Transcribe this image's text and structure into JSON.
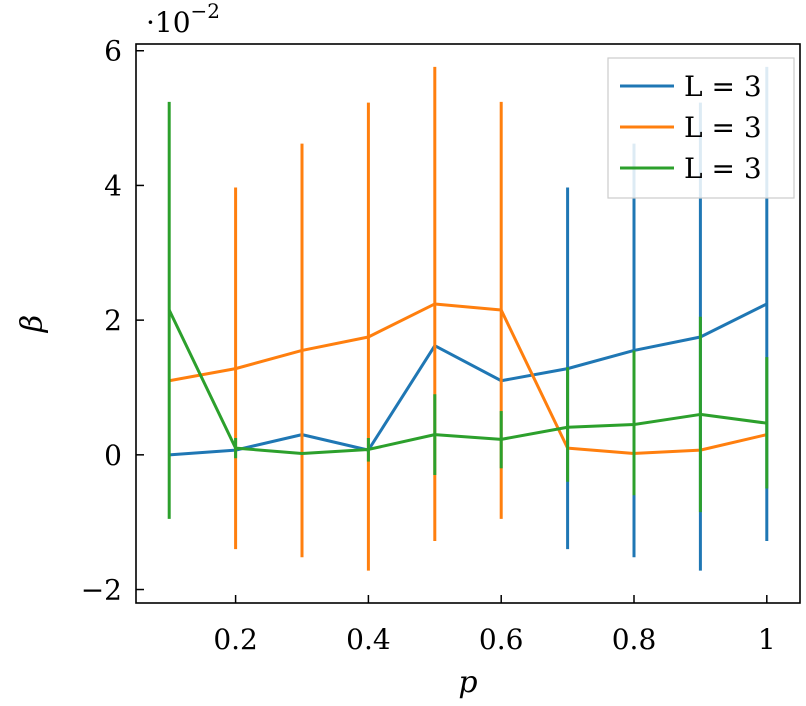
{
  "chart_data": {
    "type": "line",
    "title": "",
    "xlabel": "p",
    "ylabel": "β",
    "y_scale_label": "·10",
    "y_scale_exponent": "−2",
    "xlim": [
      0.05,
      1.05
    ],
    "ylim": [
      -2.2,
      6.1
    ],
    "x_ticks": [
      {
        "value": 0.2,
        "label": "0.2"
      },
      {
        "value": 0.4,
        "label": "0.4"
      },
      {
        "value": 0.6,
        "label": "0.6"
      },
      {
        "value": 0.8,
        "label": "0.8"
      },
      {
        "value": 1.0,
        "label": "1"
      }
    ],
    "y_ticks": [
      {
        "value": -2,
        "label": "−2"
      },
      {
        "value": 0,
        "label": "0"
      },
      {
        "value": 2,
        "label": "2"
      },
      {
        "value": 4,
        "label": "4"
      },
      {
        "value": 6,
        "label": "6"
      }
    ],
    "grid": false,
    "legend_position": "top-right",
    "series": [
      {
        "name": "L = 3",
        "color": "#1f77b4",
        "x": [
          0.1,
          0.2,
          0.3,
          0.4,
          0.5,
          0.6,
          0.7,
          0.8,
          0.9,
          1.0
        ],
        "y": [
          0.0,
          0.07,
          0.3,
          0.07,
          1.62,
          1.1,
          1.28,
          1.55,
          1.75,
          2.24
        ],
        "y_low": [
          0.0,
          0.07,
          0.3,
          0.07,
          1.62,
          1.1,
          -1.4,
          -1.52,
          -1.72,
          -1.28
        ],
        "y_high": [
          0.0,
          0.07,
          0.3,
          0.07,
          1.62,
          1.1,
          3.97,
          4.62,
          5.23,
          5.76
        ]
      },
      {
        "name": "L = 3",
        "color": "#ff7f0e",
        "x": [
          0.1,
          0.2,
          0.3,
          0.4,
          0.5,
          0.6,
          0.7,
          0.8,
          0.9,
          1.0
        ],
        "y": [
          1.1,
          1.28,
          1.55,
          1.75,
          2.24,
          2.15,
          0.1,
          0.02,
          0.07,
          0.3
        ],
        "y_low": [
          1.1,
          -1.4,
          -1.52,
          -1.72,
          -1.28,
          -0.95,
          0.1,
          0.02,
          0.07,
          0.3
        ],
        "y_high": [
          1.1,
          3.97,
          4.62,
          5.23,
          5.76,
          5.24,
          0.1,
          0.02,
          0.07,
          0.3
        ]
      },
      {
        "name": "L = 3",
        "color": "#2ca02c",
        "x": [
          0.1,
          0.2,
          0.3,
          0.4,
          0.5,
          0.6,
          0.7,
          0.8,
          0.9,
          1.0
        ],
        "y": [
          2.15,
          0.1,
          0.02,
          0.08,
          0.3,
          0.23,
          0.41,
          0.45,
          0.6,
          0.47
        ],
        "y_low": [
          -0.95,
          -0.05,
          0.02,
          -0.1,
          -0.3,
          -0.2,
          -0.4,
          -0.6,
          -0.85,
          -0.5
        ],
        "y_high": [
          5.24,
          0.25,
          0.02,
          0.25,
          0.9,
          0.65,
          1.3,
          1.55,
          2.05,
          1.45
        ]
      }
    ]
  }
}
